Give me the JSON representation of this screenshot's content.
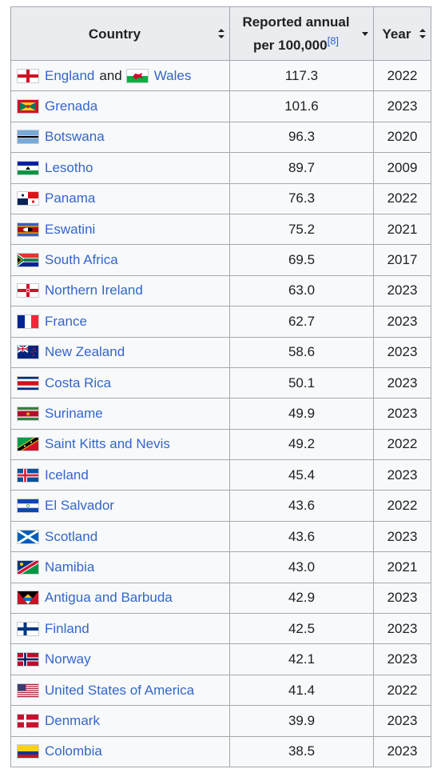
{
  "table": {
    "headers": {
      "country": "Country",
      "rate_line1": "Reported annual",
      "rate_line2": "per 100,000",
      "rate_ref": "[8]",
      "year": "Year"
    },
    "rows": [
      {
        "country": "England",
        "joiner": "and",
        "country2": "Wales",
        "flag": "england-flag-icon",
        "flag2": "wales-flag-icon",
        "rate": "117.3",
        "year": "2022"
      },
      {
        "country": "Grenada",
        "flag": "grenada-flag-icon",
        "rate": "101.6",
        "year": "2023"
      },
      {
        "country": "Botswana",
        "flag": "botswana-flag-icon",
        "rate": "96.3",
        "year": "2020"
      },
      {
        "country": "Lesotho",
        "flag": "lesotho-flag-icon",
        "rate": "89.7",
        "year": "2009"
      },
      {
        "country": "Panama",
        "flag": "panama-flag-icon",
        "rate": "76.3",
        "year": "2022"
      },
      {
        "country": "Eswatini",
        "flag": "eswatini-flag-icon",
        "rate": "75.2",
        "year": "2021"
      },
      {
        "country": "South Africa",
        "flag": "south-africa-flag-icon",
        "rate": "69.5",
        "year": "2017"
      },
      {
        "country": "Northern Ireland",
        "flag": "northern-ireland-flag-icon",
        "rate": "63.0",
        "year": "2023"
      },
      {
        "country": "France",
        "flag": "france-flag-icon",
        "rate": "62.7",
        "year": "2023"
      },
      {
        "country": "New Zealand",
        "flag": "new-zealand-flag-icon",
        "rate": "58.6",
        "year": "2023"
      },
      {
        "country": "Costa Rica",
        "flag": "costa-rica-flag-icon",
        "rate": "50.1",
        "year": "2023"
      },
      {
        "country": "Suriname",
        "flag": "suriname-flag-icon",
        "rate": "49.9",
        "year": "2023"
      },
      {
        "country": "Saint Kitts and Nevis",
        "flag": "saint-kitts-flag-icon",
        "rate": "49.2",
        "year": "2022"
      },
      {
        "country": "Iceland",
        "flag": "iceland-flag-icon",
        "rate": "45.4",
        "year": "2023"
      },
      {
        "country": "El Salvador",
        "flag": "el-salvador-flag-icon",
        "rate": "43.6",
        "year": "2022"
      },
      {
        "country": "Scotland",
        "flag": "scotland-flag-icon",
        "rate": "43.6",
        "year": "2023"
      },
      {
        "country": "Namibia",
        "flag": "namibia-flag-icon",
        "rate": "43.0",
        "year": "2021"
      },
      {
        "country": "Antigua and Barbuda",
        "flag": "antigua-flag-icon",
        "rate": "42.9",
        "year": "2023"
      },
      {
        "country": "Finland",
        "flag": "finland-flag-icon",
        "rate": "42.5",
        "year": "2023"
      },
      {
        "country": "Norway",
        "flag": "norway-flag-icon",
        "rate": "42.1",
        "year": "2023"
      },
      {
        "country": "United States of America",
        "flag": "usa-flag-icon",
        "rate": "41.4",
        "year": "2022"
      },
      {
        "country": "Denmark",
        "flag": "denmark-flag-icon",
        "rate": "39.9",
        "year": "2023"
      },
      {
        "country": "Colombia",
        "flag": "colombia-flag-icon",
        "rate": "38.5",
        "year": "2023"
      }
    ]
  },
  "colors": {
    "link": "#3366cc",
    "header_bg": "#eaecf0",
    "cell_bg": "#f8f9fa",
    "border": "#a2a9b1"
  }
}
